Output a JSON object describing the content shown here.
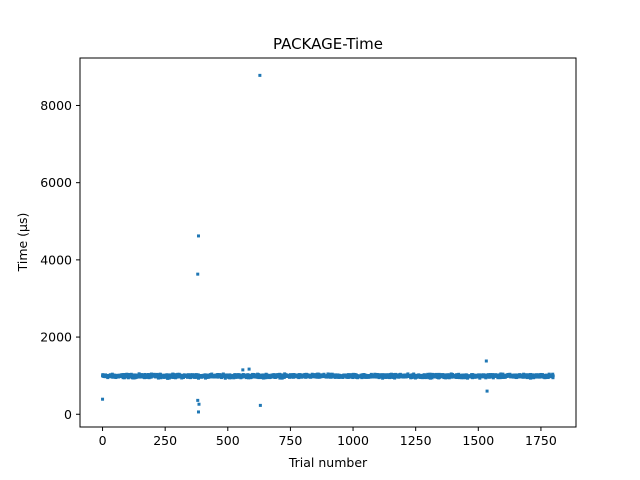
{
  "chart_data": {
    "type": "scatter",
    "title": "PACKAGE-Time",
    "xlabel": "Trial number",
    "ylabel": "Time (µs)",
    "xlim": [
      -90,
      1890
    ],
    "ylim": [
      -330,
      9230
    ],
    "xticks": [
      0,
      250,
      500,
      750,
      1000,
      1250,
      1500,
      1750
    ],
    "yticks": [
      0,
      2000,
      4000,
      6000,
      8000
    ],
    "grid": false,
    "marker_color": "#1f77b4",
    "n_points": 1800,
    "baseline_value": 990,
    "baseline_band": [
      930,
      1060
    ],
    "outliers": [
      {
        "x": 0,
        "y": 390
      },
      {
        "x": 380,
        "y": 3630
      },
      {
        "x": 383,
        "y": 4620
      },
      {
        "x": 380,
        "y": 360
      },
      {
        "x": 385,
        "y": 260
      },
      {
        "x": 383,
        "y": 60
      },
      {
        "x": 560,
        "y": 1150
      },
      {
        "x": 585,
        "y": 1170
      },
      {
        "x": 628,
        "y": 8780
      },
      {
        "x": 630,
        "y": 230
      },
      {
        "x": 1532,
        "y": 1380
      },
      {
        "x": 1535,
        "y": 600
      }
    ]
  }
}
